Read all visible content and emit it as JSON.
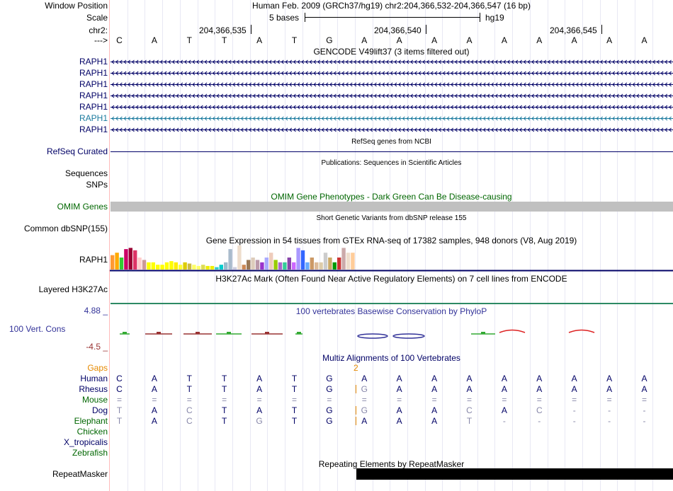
{
  "header": {
    "window_position_label": "Window Position",
    "window_position_value": "Human Feb. 2009 (GRCh37/hg19)   chr2:204,366,532-204,366,547 (16 bp)",
    "scale_label": "Scale",
    "scale_text": "5 bases",
    "scale_assembly": "hg19",
    "chrom_label": "chr2:",
    "coords": [
      "204,366,535",
      "204,366,540",
      "204,366,545"
    ],
    "strand_label": "--->",
    "bases": [
      "C",
      "A",
      "T",
      "T",
      "A",
      "T",
      "G",
      "A",
      "A",
      "A",
      "A",
      "A",
      "A",
      "A",
      "A",
      "A"
    ]
  },
  "tracks": {
    "gencode": {
      "title": "GENCODE V49lift37 (3 items filtered out)",
      "items": [
        "RAPH1",
        "RAPH1",
        "RAPH1",
        "RAPH1",
        "RAPH1",
        "RAPH1",
        "RAPH1"
      ]
    },
    "refseq": {
      "title": "RefSeq genes from NCBI",
      "label": "RefSeq Curated"
    },
    "publications": {
      "title": "Publications: Sequences in Scientific Articles",
      "label_sequences": "Sequences",
      "label_snps": "SNPs"
    },
    "omim": {
      "title": "OMIM Gene Phenotypes - Dark Green Can Be Disease-causing",
      "label": "OMIM Genes"
    },
    "dbsnp": {
      "title": "Short Genetic Variants from dbSNP release 155",
      "label": "Common dbSNP(155)"
    },
    "gtex": {
      "title": "Gene Expression in 54 tissues from GTEx RNA-seq of 17382 samples, 948 donors (V8, Aug 2019)",
      "label": "RAPH1",
      "values": [
        0.6,
        0.7,
        0.5,
        0.85,
        0.9,
        0.8,
        0.5,
        0.4,
        0.3,
        0.3,
        0.2,
        0.2,
        0.3,
        0.35,
        0.3,
        0.2,
        0.3,
        0.25,
        0.2,
        0.15,
        0.2,
        0.15,
        0.15,
        0.1,
        0.2,
        0.3,
        0.85,
        0.1,
        1.0,
        0.2,
        0.4,
        0.5,
        0.4,
        0.3,
        0.5,
        0.7,
        0.4,
        0.3,
        0.3,
        0.5,
        0.3,
        0.9,
        0.8,
        0.3,
        0.5,
        0.3,
        0.3,
        0.7,
        0.5,
        0.3,
        0.5,
        0.9,
        0.7,
        0.7
      ],
      "colors": [
        "#ff9933",
        "#ffaa00",
        "#33cc33",
        "#cc0066",
        "#990033",
        "#dd3366",
        "#ffcccc",
        "#cc9999",
        "#ffff00",
        "#ffff00",
        "#ffff00",
        "#ffff00",
        "#ffff00",
        "#ffff00",
        "#ffee00",
        "#ffff33",
        "#ddcc00",
        "#ccbb44",
        "#ffff66",
        "#ffff66",
        "#dddd55",
        "#eeee00",
        "#eeee00",
        "#33cccc",
        "#00cccc",
        "#99bbcc",
        "#aabbcc",
        "#ccccdd",
        "#eeddcc",
        "#cc8855",
        "#997755",
        "#ddccbb",
        "#bb99aa",
        "#9933cc",
        "#aaaaff",
        "#eeccbb",
        "#99cc00",
        "#aa66cc",
        "#33cc99",
        "#8844aa",
        "#cc66ff",
        "#aa99ff",
        "#3366ff",
        "#66aaff",
        "#cc9966",
        "#ddbb99",
        "#ddccaa",
        "#cccccc",
        "#ccaa66",
        "#009900",
        "#cc3333",
        "#ccaaaa",
        "#eeddcc",
        "#ffcc99"
      ]
    },
    "h3k27ac": {
      "title": "H3K27Ac Mark (Often Found Near Active Regulatory Elements) on 7 cell lines from ENCODE",
      "label": "Layered H3K27Ac"
    },
    "phylop": {
      "title": "100 vertebrates Basewise Conservation by PhyloP",
      "label": "100 Vert. Cons",
      "max_label": "4.88 _",
      "min_label": "-4.5 _"
    },
    "multiz": {
      "title": "Multiz Alignments of 100 Vertebrates",
      "gaps_label": "Gaps",
      "gap_count": "2",
      "species": [
        {
          "name": "Human",
          "seq": [
            "C",
            "A",
            "T",
            "T",
            "A",
            "T",
            "G",
            "A",
            "A",
            "A",
            "A",
            "A",
            "A",
            "A",
            "A",
            "A"
          ]
        },
        {
          "name": "Rhesus",
          "seq": [
            "C",
            "A",
            "T",
            "T",
            "A",
            "T",
            "G",
            "G",
            "A",
            "A",
            "A",
            "A",
            "A",
            "A",
            "A",
            "A"
          ]
        },
        {
          "name": "Mouse",
          "seq": [
            "=",
            "=",
            "=",
            "=",
            "=",
            "=",
            "=",
            "=",
            "=",
            "=",
            "=",
            "=",
            "=",
            "=",
            "=",
            "="
          ]
        },
        {
          "name": "Dog",
          "seq": [
            "T",
            "A",
            "C",
            "T",
            "A",
            "T",
            "G",
            "G",
            "A",
            "A",
            "C",
            "A",
            "C",
            "-",
            "-",
            "-"
          ]
        },
        {
          "name": "Elephant",
          "seq": [
            "T",
            "A",
            "C",
            "T",
            "G",
            "T",
            "G",
            "A",
            "A",
            "A",
            "T",
            "-",
            "-",
            "-",
            "-",
            "-"
          ]
        },
        {
          "name": "Chicken",
          "seq": []
        },
        {
          "name": "X_tropicalis",
          "seq": []
        },
        {
          "name": "Zebrafish",
          "seq": []
        }
      ]
    },
    "repeatmasker": {
      "title": "Repeating Elements by RepeatMasker",
      "label": "RepeatMasker"
    }
  },
  "colors": {
    "label_blue": "#000066",
    "label_teal": "#1a7a9e",
    "omim_green": "#006600",
    "gaps_orange": "#e68a00",
    "phylop_blue": "#333399",
    "phylop_red": "#993333",
    "matching_base": "#8888aa",
    "grid_line": "#e8e8f4",
    "border": "#ffbbbb"
  }
}
